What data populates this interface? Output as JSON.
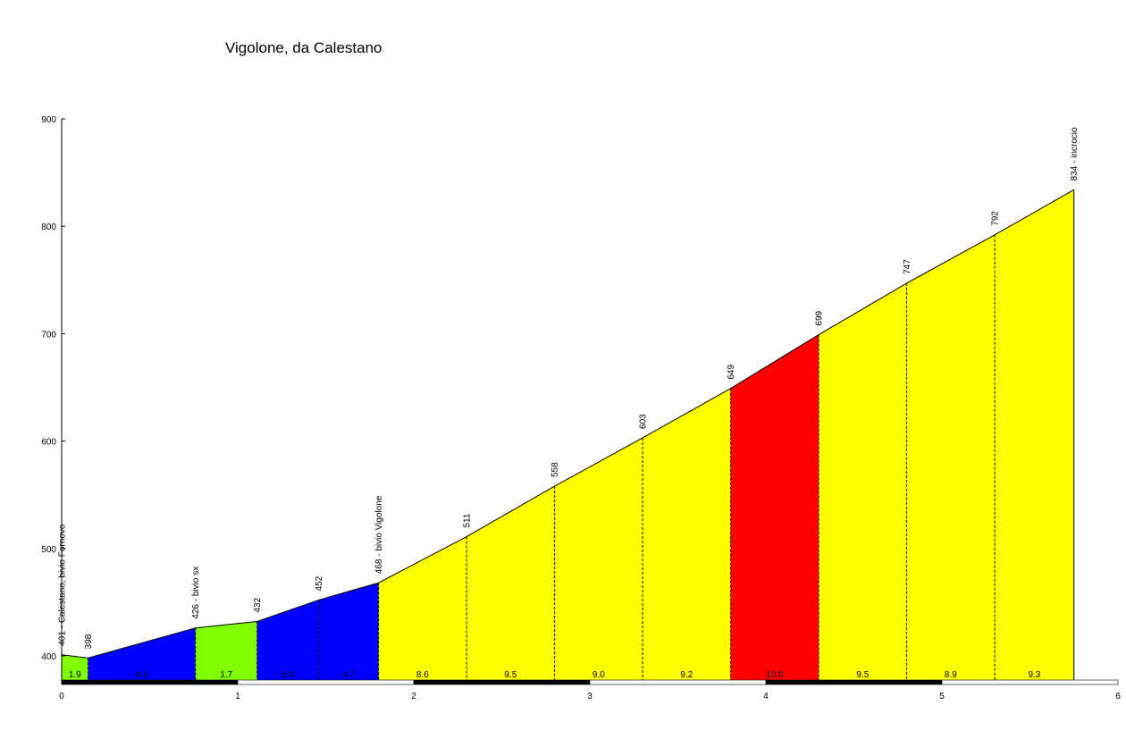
{
  "chart_data": {
    "type": "area",
    "title": "Vigolone, da Calestano",
    "xlabel": "",
    "ylabel": "",
    "xlim": [
      0,
      6
    ],
    "ylim": [
      375,
      900
    ],
    "x_ticks": [
      0,
      1,
      2,
      3,
      4,
      5,
      6
    ],
    "y_ticks": [
      400,
      500,
      600,
      700,
      800,
      900
    ],
    "points": [
      {
        "x": 0.0,
        "y": 401,
        "label": "401 - Calestano, bivio Fornovo"
      },
      {
        "x": 0.15,
        "y": 398,
        "label": "398"
      },
      {
        "x": 0.76,
        "y": 426,
        "label": "426 - bivio sx"
      },
      {
        "x": 1.11,
        "y": 432,
        "label": "432"
      },
      {
        "x": 1.46,
        "y": 452,
        "label": "452"
      },
      {
        "x": 1.8,
        "y": 468,
        "label": "468 - bivio Vigolone"
      },
      {
        "x": 2.3,
        "y": 511,
        "label": "511"
      },
      {
        "x": 2.8,
        "y": 558,
        "label": "558"
      },
      {
        "x": 3.3,
        "y": 603,
        "label": "603"
      },
      {
        "x": 3.8,
        "y": 649,
        "label": "649"
      },
      {
        "x": 4.3,
        "y": 699,
        "label": "699"
      },
      {
        "x": 4.8,
        "y": 747,
        "label": "747"
      },
      {
        "x": 5.3,
        "y": 792,
        "label": "792"
      },
      {
        "x": 5.75,
        "y": 834,
        "label": "834 - incrocio"
      }
    ],
    "segments": [
      {
        "from": 0,
        "to": 1,
        "grade": "1.9",
        "color": "#80ff00"
      },
      {
        "from": 1,
        "to": 2,
        "grade": "4.6",
        "color": "#0000ff"
      },
      {
        "from": 2,
        "to": 3,
        "grade": "1.7",
        "color": "#80ff00"
      },
      {
        "from": 3,
        "to": 4,
        "grade": "5.8",
        "color": "#0000ff"
      },
      {
        "from": 4,
        "to": 5,
        "grade": "4.7",
        "color": "#0000ff"
      },
      {
        "from": 5,
        "to": 6,
        "grade": "8.6",
        "color": "#ffff00"
      },
      {
        "from": 6,
        "to": 7,
        "grade": "9.5",
        "color": "#ffff00"
      },
      {
        "from": 7,
        "to": 8,
        "grade": "9.0",
        "color": "#ffff00"
      },
      {
        "from": 8,
        "to": 9,
        "grade": "9.2",
        "color": "#ffff00"
      },
      {
        "from": 9,
        "to": 10,
        "grade": "10.0",
        "color": "#ff0000"
      },
      {
        "from": 10,
        "to": 11,
        "grade": "9.5",
        "color": "#ffff00"
      },
      {
        "from": 11,
        "to": 12,
        "grade": "8.9",
        "color": "#ffff00"
      },
      {
        "from": 12,
        "to": 13,
        "grade": "9.3",
        "color": "#ffff00"
      }
    ],
    "legend": "none",
    "grid": false
  }
}
